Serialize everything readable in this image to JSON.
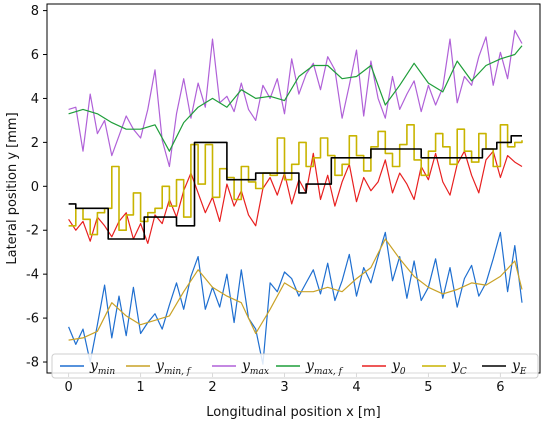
{
  "chart_data": {
    "type": "line",
    "title": "",
    "xlabel": "Longitudinal position x [m]",
    "ylabel": "Lateral position y [mm]",
    "xlim": [
      -0.3,
      6.55
    ],
    "ylim": [
      -8.5,
      8.3
    ],
    "xticks": [
      "0",
      "1",
      "2",
      "3",
      "4",
      "5",
      "6"
    ],
    "yticks": [
      "-8",
      "-6",
      "-4",
      "-2",
      "0",
      "2",
      "4",
      "6",
      "8"
    ],
    "grid": false,
    "legend_placement": "bottom",
    "legend_entries": [
      {
        "name": "y",
        "sub": "min",
        "color": "#1f6fd0"
      },
      {
        "name": "y",
        "sub": "min, f",
        "color": "#c9a227"
      },
      {
        "name": "y",
        "sub": "max",
        "color": "#b061d8"
      },
      {
        "name": "y",
        "sub": "max, f",
        "color": "#1f9e3a"
      },
      {
        "name": "y",
        "sub": "0",
        "color": "#e82020"
      },
      {
        "name": "y",
        "sub": "C",
        "color": "#c8b400"
      },
      {
        "name": "y",
        "sub": "E",
        "color": "#000000"
      }
    ],
    "series": [
      {
        "name": "y_min",
        "color": "#1f6fd0",
        "step": false,
        "x": [
          0.0,
          0.1,
          0.2,
          0.3,
          0.4,
          0.5,
          0.6,
          0.7,
          0.8,
          0.9,
          1.0,
          1.1,
          1.2,
          1.3,
          1.4,
          1.5,
          1.6,
          1.7,
          1.8,
          1.9,
          2.0,
          2.1,
          2.2,
          2.3,
          2.4,
          2.5,
          2.6,
          2.7,
          2.8,
          2.9,
          3.0,
          3.1,
          3.2,
          3.3,
          3.4,
          3.5,
          3.6,
          3.7,
          3.8,
          3.9,
          4.0,
          4.1,
          4.2,
          4.3,
          4.4,
          4.5,
          4.6,
          4.7,
          4.8,
          4.9,
          5.0,
          5.1,
          5.2,
          5.3,
          5.4,
          5.5,
          5.6,
          5.7,
          5.8,
          5.9,
          6.0,
          6.1,
          6.2,
          6.3
        ],
        "y": [
          -6.4,
          -7.2,
          -6.5,
          -8.0,
          -6.3,
          -4.5,
          -6.9,
          -5.0,
          -6.8,
          -4.6,
          -6.7,
          -6.2,
          -5.8,
          -6.5,
          -5.4,
          -4.4,
          -5.6,
          -4.1,
          -3.2,
          -5.6,
          -4.6,
          -5.5,
          -4.0,
          -6.2,
          -3.8,
          -6.0,
          -6.5,
          -8.1,
          -4.4,
          -4.8,
          -3.9,
          -4.2,
          -5.0,
          -4.4,
          -3.8,
          -4.9,
          -3.5,
          -5.2,
          -4.3,
          -3.1,
          -5.0,
          -3.7,
          -4.4,
          -3.2,
          -2.1,
          -4.3,
          -3.2,
          -5.1,
          -3.4,
          -5.2,
          -4.6,
          -3.3,
          -5.1,
          -3.7,
          -5.5,
          -4.2,
          -3.6,
          -5.0,
          -4.4,
          -3.3,
          -2.1,
          -4.8,
          -2.7,
          -5.3
        ]
      },
      {
        "name": "y_min,f",
        "color": "#c9a227",
        "step": false,
        "x": [
          0.0,
          0.2,
          0.4,
          0.6,
          0.8,
          1.0,
          1.2,
          1.4,
          1.6,
          1.8,
          2.0,
          2.2,
          2.4,
          2.6,
          2.8,
          3.0,
          3.2,
          3.4,
          3.6,
          3.8,
          4.0,
          4.2,
          4.4,
          4.6,
          4.8,
          5.0,
          5.2,
          5.4,
          5.6,
          5.8,
          6.0,
          6.2,
          6.3
        ],
        "y": [
          -7.0,
          -6.9,
          -6.6,
          -5.3,
          -5.9,
          -6.3,
          -6.1,
          -5.9,
          -4.8,
          -3.8,
          -4.6,
          -5.0,
          -5.3,
          -6.7,
          -5.6,
          -4.4,
          -4.8,
          -4.8,
          -4.6,
          -4.8,
          -4.2,
          -3.7,
          -2.4,
          -3.3,
          -4.1,
          -4.6,
          -4.9,
          -4.7,
          -4.4,
          -4.5,
          -4.1,
          -3.4,
          -4.7
        ]
      },
      {
        "name": "y_max",
        "color": "#b061d8",
        "step": false,
        "x": [
          0.0,
          0.1,
          0.2,
          0.3,
          0.4,
          0.5,
          0.6,
          0.7,
          0.8,
          0.9,
          1.0,
          1.1,
          1.2,
          1.3,
          1.4,
          1.5,
          1.6,
          1.7,
          1.8,
          1.9,
          2.0,
          2.1,
          2.2,
          2.3,
          2.4,
          2.5,
          2.6,
          2.7,
          2.8,
          2.9,
          3.0,
          3.1,
          3.2,
          3.3,
          3.4,
          3.5,
          3.6,
          3.7,
          3.8,
          3.9,
          4.0,
          4.1,
          4.2,
          4.3,
          4.4,
          4.5,
          4.6,
          4.7,
          4.8,
          4.9,
          5.0,
          5.1,
          5.2,
          5.3,
          5.4,
          5.5,
          5.6,
          5.7,
          5.8,
          5.9,
          6.0,
          6.1,
          6.2,
          6.3
        ],
        "y": [
          3.5,
          3.6,
          1.6,
          4.2,
          2.4,
          3.0,
          1.4,
          2.3,
          3.2,
          2.6,
          2.2,
          3.5,
          5.3,
          2.1,
          0.9,
          3.3,
          4.9,
          3.1,
          4.7,
          3.6,
          6.7,
          3.8,
          4.1,
          3.4,
          4.7,
          3.5,
          3.0,
          4.6,
          4.0,
          4.9,
          3.3,
          5.8,
          4.2,
          5.1,
          5.6,
          4.4,
          5.9,
          5.3,
          3.1,
          4.6,
          6.2,
          3.2,
          5.7,
          4.0,
          3.1,
          5.0,
          3.5,
          4.2,
          4.8,
          3.4,
          4.6,
          3.7,
          4.5,
          6.7,
          3.8,
          5.0,
          4.6,
          5.9,
          6.8,
          4.6,
          6.1,
          4.9,
          7.1,
          6.5
        ]
      },
      {
        "name": "y_max,f",
        "color": "#1f9e3a",
        "step": false,
        "x": [
          0.0,
          0.2,
          0.4,
          0.6,
          0.8,
          1.0,
          1.2,
          1.4,
          1.6,
          1.8,
          2.0,
          2.2,
          2.4,
          2.6,
          2.8,
          3.0,
          3.2,
          3.4,
          3.6,
          3.8,
          4.0,
          4.2,
          4.4,
          4.6,
          4.8,
          5.0,
          5.2,
          5.4,
          5.6,
          5.8,
          6.0,
          6.2,
          6.3
        ],
        "y": [
          3.3,
          3.5,
          3.3,
          2.9,
          2.6,
          2.6,
          2.8,
          1.6,
          2.9,
          3.6,
          4.0,
          3.6,
          4.4,
          4.0,
          4.1,
          3.9,
          5.0,
          5.5,
          5.5,
          4.9,
          5.0,
          5.5,
          3.7,
          4.6,
          5.6,
          4.7,
          4.3,
          5.7,
          4.8,
          5.5,
          5.8,
          6.0,
          6.4
        ]
      },
      {
        "name": "y_0",
        "color": "#e82020",
        "step": false,
        "x": [
          0.0,
          0.1,
          0.2,
          0.3,
          0.4,
          0.5,
          0.6,
          0.7,
          0.8,
          0.9,
          1.0,
          1.1,
          1.2,
          1.3,
          1.4,
          1.5,
          1.6,
          1.7,
          1.8,
          1.9,
          2.0,
          2.1,
          2.2,
          2.3,
          2.4,
          2.5,
          2.6,
          2.7,
          2.8,
          2.9,
          3.0,
          3.1,
          3.2,
          3.3,
          3.4,
          3.5,
          3.6,
          3.7,
          3.8,
          3.9,
          4.0,
          4.1,
          4.2,
          4.3,
          4.4,
          4.5,
          4.6,
          4.7,
          4.8,
          4.9,
          5.0,
          5.1,
          5.2,
          5.3,
          5.4,
          5.5,
          5.6,
          5.7,
          5.8,
          5.9,
          6.0,
          6.1,
          6.2,
          6.3
        ],
        "y": [
          -1.5,
          -2.0,
          -1.6,
          -2.5,
          -1.4,
          -1.8,
          -2.3,
          -1.6,
          -1.2,
          -2.4,
          -1.7,
          -2.6,
          -1.3,
          -1.7,
          -0.6,
          -1.4,
          -0.2,
          0.6,
          -0.3,
          -1.2,
          -0.5,
          -1.6,
          0.1,
          -0.9,
          -0.2,
          -1.3,
          -1.8,
          -0.1,
          0.4,
          -0.4,
          0.6,
          -0.8,
          0.3,
          -0.3,
          1.5,
          -0.6,
          0.5,
          -0.9,
          0.2,
          1.0,
          -0.7,
          0.4,
          -0.2,
          0.2,
          1.2,
          -0.3,
          0.6,
          0.1,
          -0.6,
          0.9,
          0.3,
          1.5,
          0.2,
          -0.4,
          1.0,
          1.6,
          0.5,
          -0.3,
          1.2,
          1.6,
          0.4,
          1.4,
          1.1,
          0.9
        ]
      },
      {
        "name": "y_C",
        "color": "#c8b400",
        "step": true,
        "x": [
          0.0,
          0.1,
          0.2,
          0.3,
          0.4,
          0.5,
          0.6,
          0.7,
          0.8,
          0.9,
          1.0,
          1.1,
          1.2,
          1.3,
          1.4,
          1.5,
          1.6,
          1.7,
          1.8,
          1.9,
          2.0,
          2.1,
          2.2,
          2.3,
          2.4,
          2.5,
          2.6,
          2.7,
          2.8,
          2.9,
          3.0,
          3.1,
          3.2,
          3.3,
          3.4,
          3.5,
          3.6,
          3.7,
          3.8,
          3.9,
          4.0,
          4.1,
          4.2,
          4.3,
          4.4,
          4.5,
          4.6,
          4.7,
          4.8,
          4.9,
          5.0,
          5.1,
          5.2,
          5.3,
          5.4,
          5.5,
          5.6,
          5.7,
          5.8,
          5.9,
          6.0,
          6.1,
          6.2,
          6.3
        ],
        "y": [
          -1.8,
          -1.0,
          -1.5,
          -2.2,
          -1.2,
          -1.0,
          0.9,
          -2.0,
          -1.3,
          -0.3,
          -1.6,
          -1.2,
          -1.0,
          0.0,
          -0.9,
          0.3,
          -1.4,
          1.9,
          0.1,
          1.9,
          -0.5,
          0.8,
          0.4,
          -0.6,
          0.9,
          0.2,
          -0.1,
          0.6,
          0.5,
          2.2,
          0.3,
          1.0,
          2.0,
          0.9,
          1.3,
          2.2,
          1.4,
          0.5,
          1.0,
          2.3,
          1.4,
          0.7,
          1.8,
          2.5,
          1.5,
          0.9,
          1.9,
          2.8,
          1.2,
          0.5,
          1.6,
          2.4,
          1.8,
          1.0,
          2.6,
          1.6,
          1.1,
          2.4,
          1.7,
          0.9,
          2.8,
          1.8,
          2.0,
          2.1
        ]
      },
      {
        "name": "y_E",
        "color": "#000000",
        "step": true,
        "x": [
          0.0,
          0.1,
          0.2,
          0.5,
          0.55,
          0.9,
          1.05,
          1.2,
          1.4,
          1.5,
          1.7,
          1.75,
          2.05,
          2.2,
          2.35,
          2.6,
          2.65,
          2.95,
          3.2,
          3.3,
          3.6,
          3.65,
          3.85,
          3.9,
          4.1,
          4.2,
          4.5,
          4.9,
          5.0,
          5.2,
          5.4,
          5.6,
          5.75,
          5.95,
          6.15,
          6.3
        ],
        "y": [
          -0.8,
          -1.0,
          -1.0,
          -1.0,
          -2.4,
          -2.4,
          -1.4,
          -1.4,
          -1.4,
          -1.8,
          -1.8,
          2.0,
          2.0,
          0.3,
          0.3,
          0.6,
          0.6,
          0.6,
          -0.3,
          0.1,
          0.1,
          1.3,
          1.3,
          1.3,
          1.3,
          1.7,
          1.7,
          1.3,
          1.3,
          1.3,
          1.3,
          1.3,
          1.7,
          2.0,
          2.3,
          2.3
        ]
      }
    ]
  }
}
